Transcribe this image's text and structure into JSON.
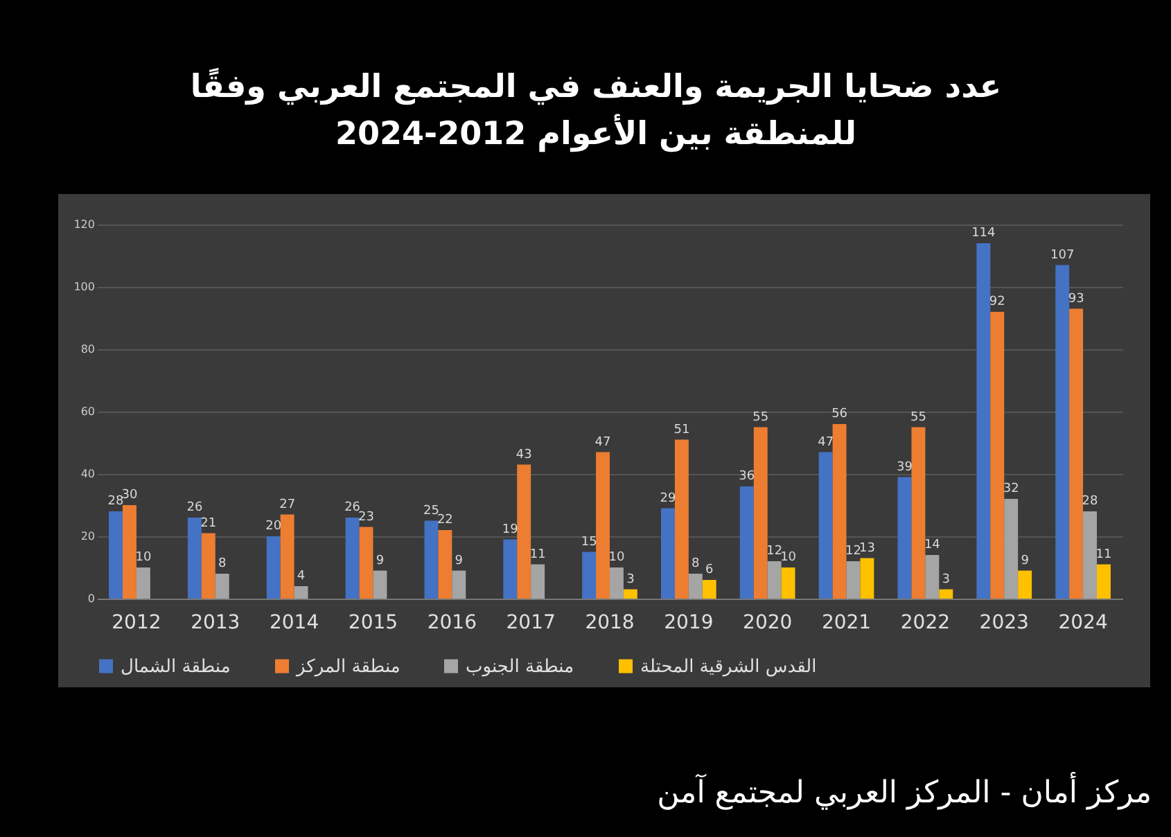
{
  "chart_data": {
    "type": "bar",
    "title": "عدد ضحايا الجريمة والعنف في المجتمع العربي وفقًا للمنطقة بين الأعوام 2012-2024",
    "categories": [
      "2012",
      "2013",
      "2014",
      "2015",
      "2016",
      "2017",
      "2018",
      "2019",
      "2020",
      "2021",
      "2022",
      "2023",
      "2024"
    ],
    "series": [
      {
        "name": "منطقة الشمال",
        "color": "#4472c4",
        "values": [
          28,
          26,
          20,
          26,
          25,
          19,
          15,
          29,
          36,
          47,
          39,
          114,
          107
        ]
      },
      {
        "name": "منطقة المركز",
        "color": "#ed7d31",
        "values": [
          30,
          21,
          27,
          23,
          22,
          43,
          47,
          51,
          55,
          56,
          55,
          92,
          93
        ]
      },
      {
        "name": "منطقة الجنوب",
        "color": "#a5a5a5",
        "values": [
          10,
          8,
          4,
          9,
          9,
          11,
          10,
          8,
          12,
          12,
          14,
          32,
          28
        ]
      },
      {
        "name": "القدس الشرقية المحتلة",
        "color": "#ffc000",
        "values": [
          null,
          null,
          null,
          null,
          null,
          null,
          3,
          6,
          10,
          13,
          3,
          9,
          11
        ]
      }
    ],
    "ylim": [
      0,
      120
    ],
    "yticks": [
      0,
      20,
      40,
      60,
      80,
      100,
      120
    ],
    "grid": "y",
    "legend": "bottom",
    "data_labels": true,
    "annotations": [
      "مركز أمان - المركز العربي لمجتمع آمن"
    ]
  }
}
